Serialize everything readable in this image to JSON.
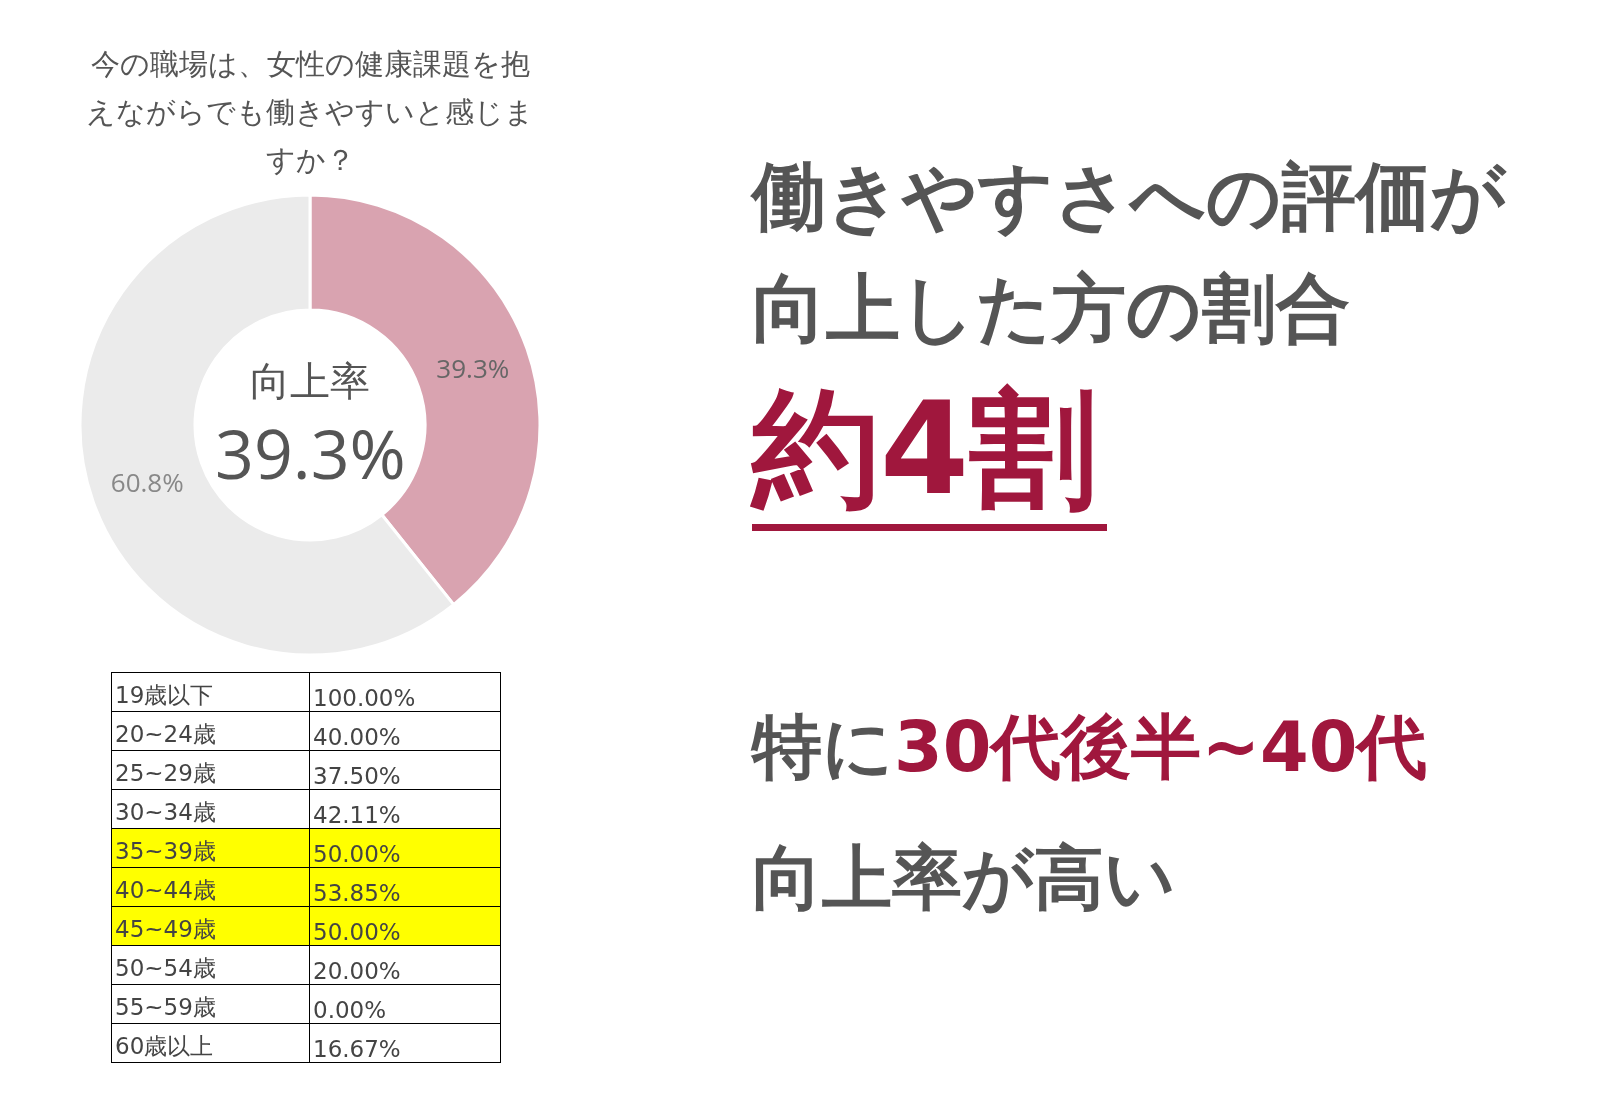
{
  "chart_data": [
    {
      "type": "donut",
      "title": "今の職場は、女性の健康課題を抱えながらでも働きやすいと感じますか？",
      "categories": [
        null,
        null
      ],
      "values": [
        39.3,
        60.8
      ],
      "colors": [
        "#d9a3b0",
        "#ebebeb"
      ],
      "value_labels": [
        "39.3%",
        "60.8%"
      ],
      "annotations": [
        "向上率",
        "39.3%"
      ],
      "legend": false
    },
    {
      "type": "other",
      "categories": [
        "19歳以下",
        "20~24歳",
        "25~29歳",
        "30~34歳",
        "35~39歳",
        "40~44歳",
        "45~49歳",
        "50~54歳",
        "55~59歳",
        "60歳以上"
      ],
      "value_labels": [
        "100.00%",
        "40.00%",
        "37.50%",
        "42.11%",
        "50.00%",
        "53.85%",
        "50.00%",
        "20.00%",
        "0.00%",
        "16.67%"
      ],
      "colors": [
        "#ffffff",
        "#ffffff",
        "#ffffff",
        "#ffffff",
        "#ffff00",
        "#ffff00",
        "#ffff00",
        "#ffffff",
        "#ffffff",
        "#ffffff"
      ]
    },
    {
      "type": "other",
      "annotations": [
        "働きやすさへの評価が",
        "向上した方の割合",
        "約4割",
        "特に",
        "30代後半~40代",
        "向上率が高い"
      ]
    }
  ]
}
